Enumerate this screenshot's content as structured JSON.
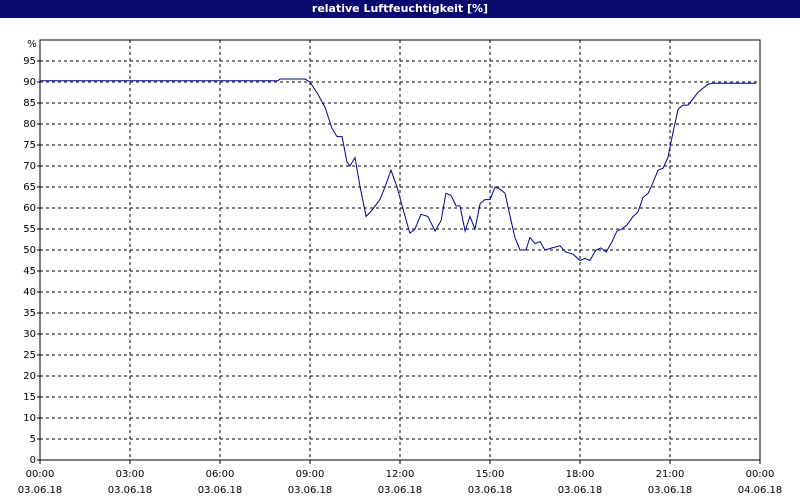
{
  "chart_data": {
    "type": "line",
    "title": "relative Luftfeuchtigkeit [%]",
    "y_unit": "%",
    "x": [
      0,
      7.93,
      8.0,
      8.83,
      9.0,
      9.27,
      9.5,
      9.73,
      9.9,
      10.07,
      10.23,
      10.33,
      10.5,
      10.67,
      10.87,
      11.07,
      11.33,
      11.5,
      11.7,
      11.9,
      12.13,
      12.33,
      12.5,
      12.7,
      12.93,
      13.17,
      13.37,
      13.53,
      13.7,
      13.87,
      14.0,
      14.17,
      14.33,
      14.5,
      14.67,
      14.83,
      15.0,
      15.17,
      15.33,
      15.5,
      15.67,
      15.83,
      16.0,
      16.2,
      16.33,
      16.5,
      16.67,
      16.83,
      17.07,
      17.33,
      17.53,
      17.77,
      18.0,
      18.17,
      18.33,
      18.53,
      18.7,
      18.87,
      19.07,
      19.23,
      19.4,
      19.57,
      19.77,
      19.93,
      20.1,
      20.27,
      20.43,
      20.6,
      20.77,
      20.93,
      21.1,
      21.27,
      21.43,
      21.6,
      21.77,
      21.93,
      22.1,
      22.27,
      22.43,
      23.87
    ],
    "series": [
      {
        "color": "#000090",
        "values": [
          90.3,
          90.3,
          90.7,
          90.7,
          90,
          87,
          84,
          79,
          77,
          77,
          71,
          70,
          72,
          65,
          58,
          59.5,
          62,
          65,
          69,
          65,
          59,
          54,
          55,
          58.5,
          58,
          54.5,
          57,
          63.5,
          63,
          60.5,
          60.5,
          54.5,
          58,
          55,
          61,
          62,
          62,
          65,
          64.5,
          63.5,
          58,
          53,
          50,
          50,
          53,
          51.5,
          52,
          50,
          50.5,
          51,
          49.5,
          49,
          47.5,
          48,
          47.5,
          50,
          50.5,
          49.5,
          52,
          54.5,
          55,
          56,
          58,
          59,
          62.5,
          63.5,
          66,
          69,
          69.5,
          72,
          78,
          83.5,
          84.5,
          84.5,
          86,
          87.5,
          88.5,
          89.5,
          89.7,
          89.7
        ]
      }
    ],
    "xlim": [
      0,
      24
    ],
    "xticks": [
      {
        "value": 0,
        "label": "00:00",
        "date": "03.06.18"
      },
      {
        "value": 3,
        "label": "03:00",
        "date": "03.06.18"
      },
      {
        "value": 6,
        "label": "06:00",
        "date": "03.06.18"
      },
      {
        "value": 9,
        "label": "09:00",
        "date": "03.06.18"
      },
      {
        "value": 12,
        "label": "12:00",
        "date": "03.06.18"
      },
      {
        "value": 15,
        "label": "15:00",
        "date": "03.06.18"
      },
      {
        "value": 18,
        "label": "18:00",
        "date": "03.06.18"
      },
      {
        "value": 21,
        "label": "21:00",
        "date": "03.06.18"
      },
      {
        "value": 24,
        "label": "00:00",
        "date": "04.06.18"
      }
    ],
    "ylim": [
      0,
      100
    ],
    "yticks": [
      0,
      5,
      10,
      15,
      20,
      25,
      30,
      35,
      40,
      45,
      50,
      55,
      60,
      65,
      70,
      75,
      80,
      85,
      90,
      95
    ],
    "grid": true
  }
}
